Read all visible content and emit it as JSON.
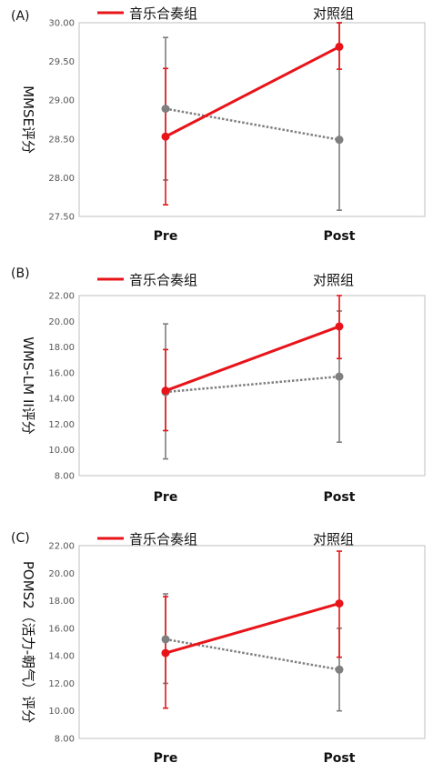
{
  "chart_data": [
    {
      "type": "line",
      "panel_label": "(A)",
      "ylabel": "MMSE评分",
      "categories": [
        "Pre",
        "Post"
      ],
      "ylim": [
        27.5,
        30.0
      ],
      "yticks": [
        "27.50",
        "28.00",
        "28.50",
        "29.00",
        "29.50",
        "30.00"
      ],
      "legend": [
        "音乐合奏组",
        "对照组"
      ],
      "series": [
        {
          "name": "音乐合奏组",
          "color": "#e8141a",
          "style": "solid",
          "values": [
            28.53,
            29.69
          ],
          "err_low": [
            27.65,
            29.4
          ],
          "err_high": [
            29.41,
            30.0
          ]
        },
        {
          "name": "对照组",
          "color": "#7f7f7f",
          "style": "dotted",
          "values": [
            28.89,
            28.49
          ],
          "err_low": [
            27.97,
            27.58
          ],
          "err_high": [
            29.81,
            30.0
          ]
        }
      ]
    },
    {
      "type": "line",
      "panel_label": "(B)",
      "ylabel": "WMS-LM II评分",
      "categories": [
        "Pre",
        "Post"
      ],
      "ylim": [
        8.0,
        22.0
      ],
      "yticks": [
        "8.00",
        "10.00",
        "12.00",
        "14.00",
        "16.00",
        "18.00",
        "20.00",
        "22.00"
      ],
      "legend": [
        "音乐合奏组",
        "对照组"
      ],
      "series": [
        {
          "name": "音乐合奏组",
          "color": "#e8141a",
          "style": "solid",
          "values": [
            14.6,
            19.6
          ],
          "err_low": [
            11.5,
            17.1
          ],
          "err_high": [
            17.8,
            22.1
          ]
        },
        {
          "name": "对照组",
          "color": "#7f7f7f",
          "style": "dotted",
          "values": [
            14.5,
            15.7
          ],
          "err_low": [
            9.3,
            10.6
          ],
          "err_high": [
            19.8,
            20.8
          ]
        }
      ]
    },
    {
      "type": "line",
      "panel_label": "(C)",
      "ylabel": "POMS2（活力-朝气）评分",
      "categories": [
        "Pre",
        "Post"
      ],
      "ylim": [
        8.0,
        22.0
      ],
      "yticks": [
        "8.00",
        "10.00",
        "12.00",
        "14.00",
        "16.00",
        "18.00",
        "20.00",
        "22.00"
      ],
      "legend": [
        "音乐合奏组",
        "对照组"
      ],
      "series": [
        {
          "name": "音乐合奏组",
          "color": "#e8141a",
          "style": "solid",
          "values": [
            14.2,
            17.8
          ],
          "err_low": [
            10.2,
            13.9
          ],
          "err_high": [
            18.3,
            21.6
          ]
        },
        {
          "name": "对照组",
          "color": "#7f7f7f",
          "style": "dotted",
          "values": [
            15.2,
            13.0
          ],
          "err_low": [
            12.0,
            10.0
          ],
          "err_high": [
            18.5,
            16.0
          ]
        }
      ]
    }
  ]
}
